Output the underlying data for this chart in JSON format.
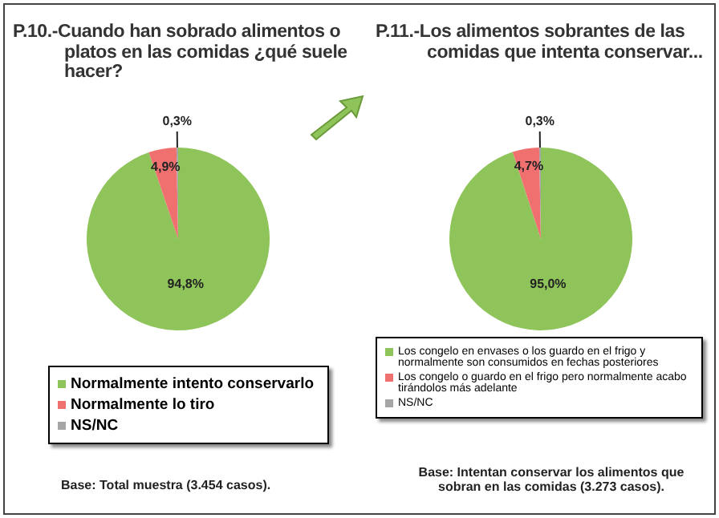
{
  "chart_data": [
    {
      "type": "pie",
      "title": "P.10.-Cuando han sobrado alimentos o platos en las comidas ¿qué suele hacer?",
      "categories": [
        "Normalmente intento conservarlo",
        "Normalmente lo tiro",
        "NS/NC"
      ],
      "values": [
        94.8,
        4.9,
        0.3
      ],
      "value_labels": [
        "94,8%",
        "4,9%",
        "0,3%"
      ],
      "colors": [
        "#8fc45a",
        "#f07070",
        "#a6a6a6"
      ],
      "legend": "bottom",
      "annotations": [
        "Base: Total muestra (3.454 casos)."
      ]
    },
    {
      "type": "pie",
      "title": "P.11.-Los alimentos sobrantes de las comidas que intenta conservar...",
      "categories": [
        "Los congelo en envases o los guardo en el frigo y normalmente son consumidos en fechas posteriores",
        "Los congelo o guardo en el frigo pero normalmente acabo tirándolos más adelante",
        "NS/NC"
      ],
      "values": [
        95.0,
        4.7,
        0.3
      ],
      "value_labels": [
        "95,0%",
        "4,7%",
        "0,3%"
      ],
      "colors": [
        "#8fc45a",
        "#f07070",
        "#a6a6a6"
      ],
      "legend": "bottom",
      "annotations": [
        "Base: Intentan conservar los alimentos que sobran en las comidas (3.273 casos)."
      ]
    }
  ]
}
